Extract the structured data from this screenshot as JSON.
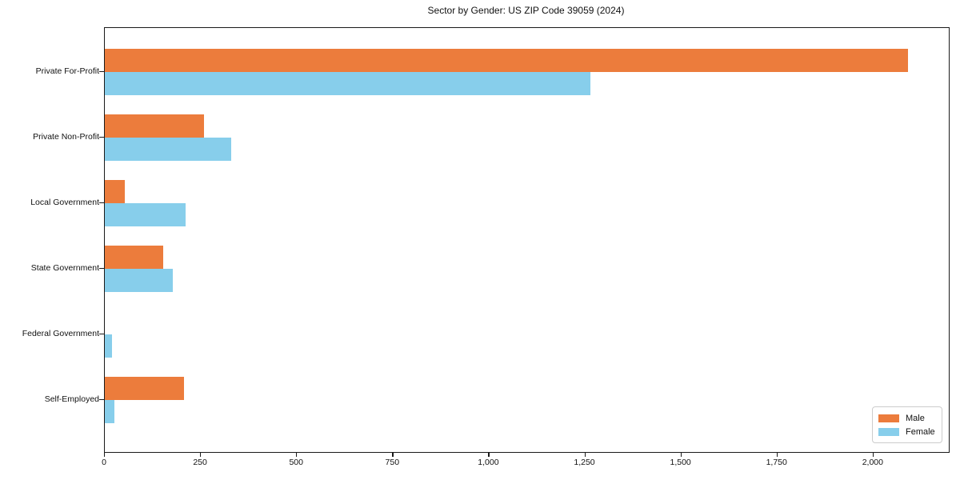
{
  "chart_data": {
    "type": "bar",
    "orientation": "horizontal",
    "title": "Sector by Gender: US ZIP Code 39059 (2024)",
    "categories": [
      "Private For-Profit",
      "Private Non-Profit",
      "Local Government",
      "State Government",
      "Federal Government",
      "Self-Employed"
    ],
    "series": [
      {
        "name": "Male",
        "color": "#EC7C3C",
        "values": [
          2090,
          258,
          53,
          152,
          0,
          207
        ]
      },
      {
        "name": "Female",
        "color": "#87CEEB",
        "values": [
          1263,
          329,
          210,
          177,
          18,
          26
        ]
      }
    ],
    "xlabel": "",
    "ylabel": "",
    "xlim": [
      0,
      2196
    ],
    "x_ticks": [
      0,
      250,
      500,
      750,
      1000,
      1250,
      1500,
      1750,
      2000
    ],
    "x_tick_labels": [
      "0",
      "250",
      "500",
      "750",
      "1,000",
      "1,250",
      "1,500",
      "1,750",
      "2,000"
    ],
    "grid": false,
    "legend_position": "lower right",
    "colors": {
      "spine": "#1a1a1a",
      "background": "#ffffff",
      "legend_border": "#cccccc"
    }
  }
}
